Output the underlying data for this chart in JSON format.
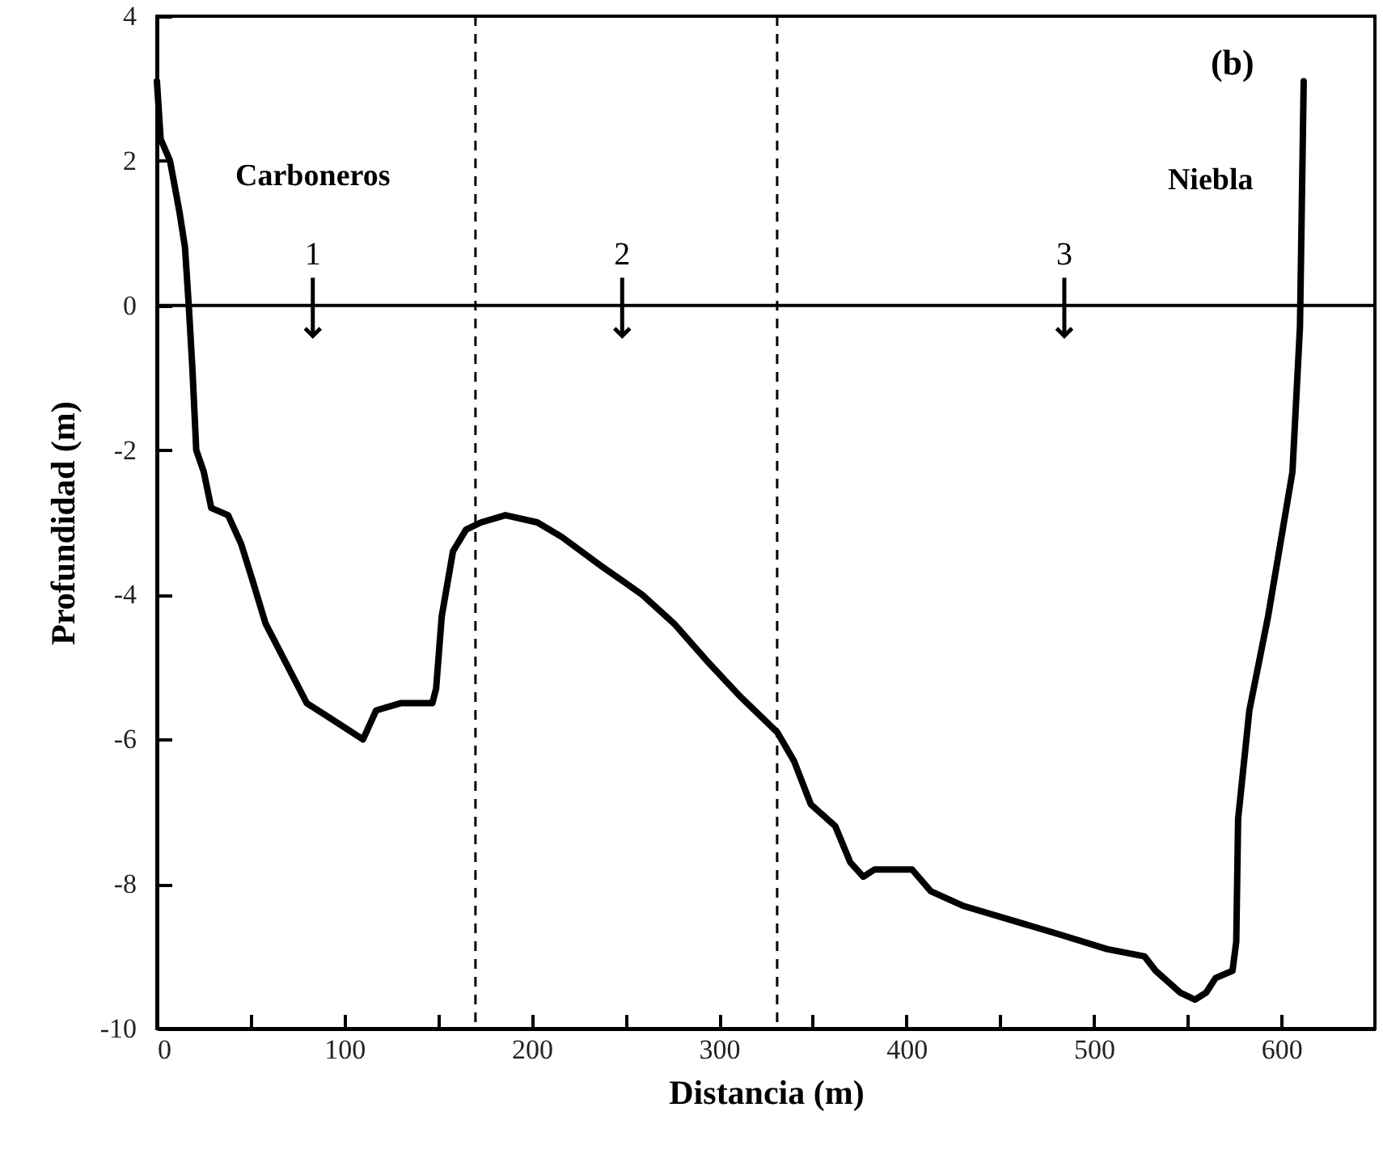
{
  "chart_data": {
    "type": "line",
    "xlabel": "Distancia (m)",
    "ylabel": "Profundidad (m)",
    "x": [
      0,
      2,
      7,
      12,
      15,
      17,
      19,
      21,
      25,
      29,
      38,
      45,
      51,
      58,
      70,
      80,
      92,
      110,
      117,
      130,
      147,
      149,
      152,
      158,
      165,
      173,
      186,
      203,
      216,
      237,
      259,
      276,
      293,
      311,
      331,
      340,
      349,
      362,
      370,
      377,
      383,
      403,
      413,
      430,
      456,
      482,
      507,
      527,
      533,
      546,
      554,
      560,
      565,
      574,
      576,
      577,
      583,
      593,
      606,
      610,
      611,
      612
    ],
    "series": [
      {
        "color": "#000000",
        "values": [
          3.1,
          2.3,
          2.0,
          1.3,
          0.8,
          0,
          -0.9,
          -2.0,
          -2.3,
          -2.8,
          -2.9,
          -3.3,
          -3.8,
          -4.4,
          -5.0,
          -5.5,
          -5.7,
          -6.0,
          -5.6,
          -5.5,
          -5.5,
          -5.3,
          -4.3,
          -3.4,
          -3.1,
          -3.0,
          -2.9,
          -3.0,
          -3.2,
          -3.6,
          -4.0,
          -4.4,
          -4.9,
          -5.4,
          -5.9,
          -6.3,
          -6.9,
          -7.2,
          -7.7,
          -7.9,
          -7.8,
          -7.8,
          -8.1,
          -8.3,
          -8.5,
          -8.7,
          -8.9,
          -9.0,
          -9.2,
          -9.5,
          -9.6,
          -9.5,
          -9.3,
          -9.2,
          -8.8,
          -7.1,
          -5.6,
          -4.3,
          -2.3,
          -0.3,
          1.4,
          3.1
        ]
      }
    ],
    "xlim": [
      0,
      650
    ],
    "ylim": [
      -10,
      4
    ],
    "xticks": [
      0,
      {
        "value": 50,
        "label": null
      },
      100,
      {
        "value": 150,
        "label": null
      },
      200,
      {
        "value": 250,
        "label": null
      },
      300,
      {
        "value": 350,
        "label": null
      },
      400,
      {
        "value": 450,
        "label": null
      },
      500,
      {
        "value": 550,
        "label": null
      },
      600
    ],
    "yticks": [
      -10,
      -8,
      -6,
      -4,
      -2,
      0,
      2,
      4
    ],
    "grid": false,
    "marker": "none",
    "line_style": "solid",
    "ref_lines": [
      {
        "axis": "y",
        "value": 0,
        "line_style": "solid"
      },
      {
        "axis": "x",
        "value": 170,
        "line_style": "dashed"
      },
      {
        "axis": "x",
        "value": 331,
        "line_style": "dashed"
      }
    ],
    "annotations": [
      "1",
      "2",
      "3",
      "Carboneros",
      "Niebla",
      "(b)"
    ]
  }
}
